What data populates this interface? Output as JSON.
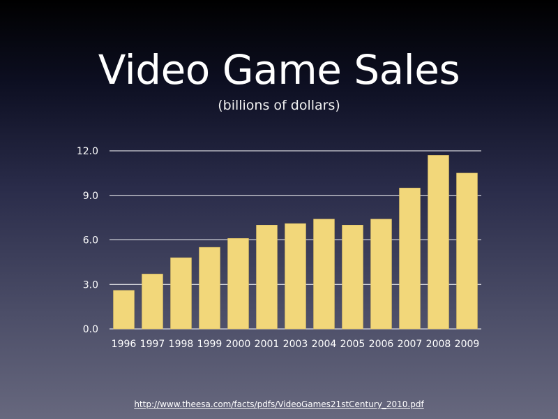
{
  "slide": {
    "title": "Video Game Sales",
    "subtitle": "(billions of dollars)",
    "source_link": "http://www.theesa.com/facts/pdfs/VideoGames21stCentury_2010.pdf"
  },
  "colors": {
    "bar": "#f2d77a",
    "bar_edge": "#d9bc5e",
    "gridline": "#ffffff",
    "text": "#ffffff"
  },
  "chart_data": {
    "type": "bar",
    "title": "Video Game Sales",
    "subtitle": "(billions of dollars)",
    "xlabel": "",
    "ylabel": "",
    "categories": [
      "1996",
      "1997",
      "1998",
      "1999",
      "2000",
      "2001",
      "2003",
      "2004",
      "2005",
      "2006",
      "2007",
      "2008",
      "2009"
    ],
    "values": [
      2.6,
      3.7,
      4.8,
      5.5,
      6.1,
      7.0,
      7.1,
      7.4,
      7.0,
      7.4,
      9.5,
      11.7,
      10.5
    ],
    "ylim": [
      0,
      12
    ],
    "yticks": [
      0,
      3,
      6,
      9,
      12
    ],
    "ytick_labels": [
      "0.0",
      "3.0",
      "6.0",
      "9.0",
      "12.0"
    ],
    "grid": true,
    "legend": "none"
  }
}
